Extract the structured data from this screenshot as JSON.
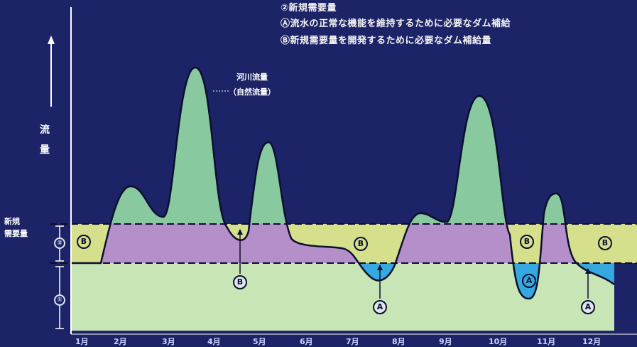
{
  "legend": {
    "line1": "②新規需要量",
    "line2": "Ⓐ流水の正常な機能を維持するために必要なダム補給",
    "line3": "Ⓑ新規需要量を開発するために必要なダム補給量"
  },
  "y_axis": {
    "label_1": "流",
    "label_2": "量"
  },
  "side_labels": {
    "new_demand_1": "新規",
    "new_demand_2": "需要量",
    "circle_1": "①",
    "circle_2": "②"
  },
  "river_flow": {
    "line1": "河川流量",
    "line2": "（自然流量）"
  },
  "months": [
    "1月",
    "2月",
    "3月",
    "4月",
    "5月",
    "6月",
    "7月",
    "8月",
    "9月",
    "10月",
    "11月",
    "12月"
  ],
  "markers": {
    "a": "A",
    "b": "B"
  },
  "colors": {
    "background": "#1c2366",
    "natural_flow": "#88c9a0",
    "band_1": "#c7e5b5",
    "band_2_yellow": "#d6e08c",
    "band_2_purple": "#b48fc9",
    "deficit_blue": "#35a8df"
  }
}
